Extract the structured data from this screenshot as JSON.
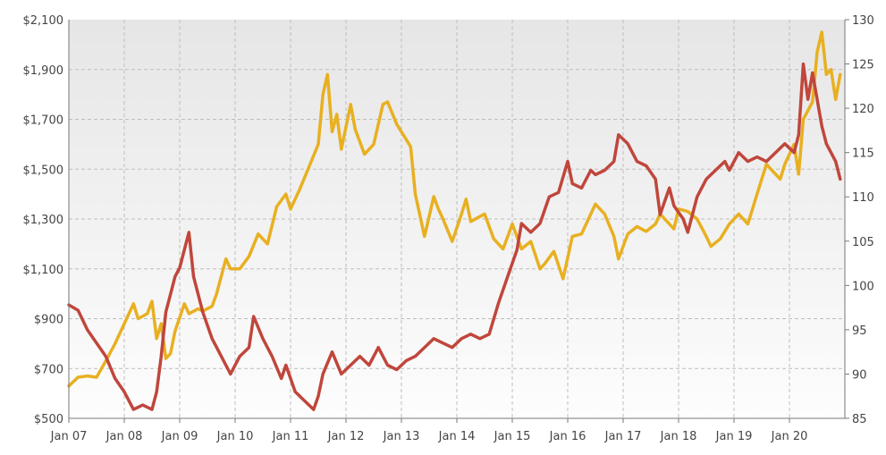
{
  "chart_data": {
    "type": "line",
    "title": "",
    "xlabel": "",
    "ylabel": "",
    "x_tick_labels": [
      "Jan 07",
      "Jan 08",
      "Jan 09",
      "Jan 10",
      "Jan 11",
      "Jan 12",
      "Jan 13",
      "Jan 14",
      "Jan 15",
      "Jan 16",
      "Jan 17",
      "Jan 18",
      "Jan 19",
      "Jan 20"
    ],
    "y_left_tick_labels": [
      "$2,100",
      "$1,900",
      "$1,700",
      "$1,500",
      "$1,300",
      "$1,100",
      "$900",
      "$700",
      "$500"
    ],
    "y_right_tick_labels": [
      "130",
      "125",
      "120",
      "115",
      "110",
      "105",
      "100",
      "95",
      "90",
      "85"
    ],
    "y_left_lim": [
      500,
      2100
    ],
    "y_right_lim": [
      85,
      130
    ],
    "x_range": [
      "2007-01",
      "2020-12"
    ],
    "grid": true,
    "legend": "none",
    "series": [
      {
        "axis": "left",
        "color": "#e8b021",
        "points": [
          [
            "2007-01",
            630
          ],
          [
            "2007-03",
            665
          ],
          [
            "2007-05",
            670
          ],
          [
            "2007-07",
            665
          ],
          [
            "2007-09",
            730
          ],
          [
            "2007-11",
            800
          ],
          [
            "2008-01",
            880
          ],
          [
            "2008-03",
            960
          ],
          [
            "2008-04",
            900
          ],
          [
            "2008-06",
            920
          ],
          [
            "2008-07",
            970
          ],
          [
            "2008-08",
            820
          ],
          [
            "2008-09",
            880
          ],
          [
            "2008-10",
            740
          ],
          [
            "2008-11",
            760
          ],
          [
            "2008-12",
            850
          ],
          [
            "2009-02",
            960
          ],
          [
            "2009-03",
            920
          ],
          [
            "2009-05",
            940
          ],
          [
            "2009-06",
            930
          ],
          [
            "2009-08",
            950
          ],
          [
            "2009-09",
            1000
          ],
          [
            "2009-11",
            1140
          ],
          [
            "2009-12",
            1100
          ],
          [
            "2010-02",
            1100
          ],
          [
            "2010-04",
            1150
          ],
          [
            "2010-06",
            1240
          ],
          [
            "2010-08",
            1200
          ],
          [
            "2010-10",
            1350
          ],
          [
            "2010-12",
            1400
          ],
          [
            "2011-01",
            1340
          ],
          [
            "2011-03",
            1420
          ],
          [
            "2011-05",
            1510
          ],
          [
            "2011-07",
            1600
          ],
          [
            "2011-08",
            1800
          ],
          [
            "2011-09",
            1880
          ],
          [
            "2011-10",
            1650
          ],
          [
            "2011-11",
            1720
          ],
          [
            "2011-12",
            1580
          ],
          [
            "2012-02",
            1760
          ],
          [
            "2012-03",
            1660
          ],
          [
            "2012-05",
            1560
          ],
          [
            "2012-07",
            1600
          ],
          [
            "2012-09",
            1760
          ],
          [
            "2012-10",
            1770
          ],
          [
            "2012-12",
            1680
          ],
          [
            "2013-02",
            1620
          ],
          [
            "2013-03",
            1590
          ],
          [
            "2013-04",
            1400
          ],
          [
            "2013-06",
            1230
          ],
          [
            "2013-08",
            1390
          ],
          [
            "2013-09",
            1340
          ],
          [
            "2013-10",
            1300
          ],
          [
            "2013-12",
            1210
          ],
          [
            "2014-02",
            1320
          ],
          [
            "2014-03",
            1380
          ],
          [
            "2014-04",
            1290
          ],
          [
            "2014-06",
            1310
          ],
          [
            "2014-07",
            1320
          ],
          [
            "2014-09",
            1220
          ],
          [
            "2014-11",
            1180
          ],
          [
            "2015-01",
            1280
          ],
          [
            "2015-03",
            1180
          ],
          [
            "2015-05",
            1210
          ],
          [
            "2015-07",
            1100
          ],
          [
            "2015-08",
            1120
          ],
          [
            "2015-10",
            1170
          ],
          [
            "2015-12",
            1060
          ],
          [
            "2016-02",
            1230
          ],
          [
            "2016-04",
            1240
          ],
          [
            "2016-06",
            1320
          ],
          [
            "2016-07",
            1360
          ],
          [
            "2016-09",
            1320
          ],
          [
            "2016-11",
            1230
          ],
          [
            "2016-12",
            1140
          ],
          [
            "2017-02",
            1240
          ],
          [
            "2017-04",
            1270
          ],
          [
            "2017-06",
            1250
          ],
          [
            "2017-08",
            1280
          ],
          [
            "2017-09",
            1320
          ],
          [
            "2017-11",
            1280
          ],
          [
            "2017-12",
            1260
          ],
          [
            "2018-01",
            1340
          ],
          [
            "2018-03",
            1330
          ],
          [
            "2018-05",
            1300
          ],
          [
            "2018-07",
            1230
          ],
          [
            "2018-08",
            1190
          ],
          [
            "2018-10",
            1220
          ],
          [
            "2018-12",
            1280
          ],
          [
            "2019-02",
            1320
          ],
          [
            "2019-04",
            1280
          ],
          [
            "2019-06",
            1400
          ],
          [
            "2019-08",
            1520
          ],
          [
            "2019-09",
            1500
          ],
          [
            "2019-11",
            1460
          ],
          [
            "2019-12",
            1520
          ],
          [
            "2020-02",
            1600
          ],
          [
            "2020-03",
            1480
          ],
          [
            "2020-04",
            1700
          ],
          [
            "2020-06",
            1770
          ],
          [
            "2020-07",
            1970
          ],
          [
            "2020-08",
            2050
          ],
          [
            "2020-09",
            1880
          ],
          [
            "2020-10",
            1900
          ],
          [
            "2020-11",
            1780
          ],
          [
            "2020-12",
            1880
          ]
        ]
      },
      {
        "axis": "right",
        "color": "#c0463c",
        "points": [
          [
            "2007-01",
            97.8
          ],
          [
            "2007-03",
            97.2
          ],
          [
            "2007-05",
            95
          ],
          [
            "2007-07",
            93.5
          ],
          [
            "2007-09",
            92
          ],
          [
            "2007-11",
            89.5
          ],
          [
            "2008-01",
            88
          ],
          [
            "2008-03",
            86
          ],
          [
            "2008-05",
            86.5
          ],
          [
            "2008-07",
            86
          ],
          [
            "2008-08",
            88
          ],
          [
            "2008-09",
            92
          ],
          [
            "2008-10",
            97
          ],
          [
            "2008-11",
            99
          ],
          [
            "2008-12",
            101
          ],
          [
            "2009-01",
            102
          ],
          [
            "2009-03",
            106
          ],
          [
            "2009-04",
            101
          ],
          [
            "2009-06",
            97
          ],
          [
            "2009-08",
            94
          ],
          [
            "2009-10",
            92
          ],
          [
            "2009-12",
            90
          ],
          [
            "2010-02",
            92
          ],
          [
            "2010-04",
            93
          ],
          [
            "2010-05",
            96.5
          ],
          [
            "2010-07",
            94
          ],
          [
            "2010-09",
            92
          ],
          [
            "2010-11",
            89.5
          ],
          [
            "2010-12",
            91
          ],
          [
            "2011-02",
            88
          ],
          [
            "2011-04",
            87
          ],
          [
            "2011-06",
            86
          ],
          [
            "2011-07",
            87.5
          ],
          [
            "2011-08",
            90
          ],
          [
            "2011-10",
            92.5
          ],
          [
            "2011-12",
            90
          ],
          [
            "2012-02",
            91
          ],
          [
            "2012-04",
            92
          ],
          [
            "2012-06",
            91
          ],
          [
            "2012-08",
            93
          ],
          [
            "2012-10",
            91
          ],
          [
            "2012-12",
            90.5
          ],
          [
            "2013-02",
            91.5
          ],
          [
            "2013-04",
            92
          ],
          [
            "2013-06",
            93
          ],
          [
            "2013-08",
            94
          ],
          [
            "2013-10",
            93.5
          ],
          [
            "2013-12",
            93
          ],
          [
            "2014-02",
            94
          ],
          [
            "2014-04",
            94.5
          ],
          [
            "2014-06",
            94
          ],
          [
            "2014-08",
            94.5
          ],
          [
            "2014-10",
            98
          ],
          [
            "2014-12",
            101
          ],
          [
            "2015-02",
            104
          ],
          [
            "2015-03",
            107
          ],
          [
            "2015-05",
            106
          ],
          [
            "2015-07",
            107
          ],
          [
            "2015-09",
            110
          ],
          [
            "2015-11",
            110.5
          ],
          [
            "2016-01",
            114
          ],
          [
            "2016-02",
            111.5
          ],
          [
            "2016-04",
            111
          ],
          [
            "2016-06",
            113
          ],
          [
            "2016-07",
            112.5
          ],
          [
            "2016-09",
            113
          ],
          [
            "2016-11",
            114
          ],
          [
            "2016-12",
            117
          ],
          [
            "2017-02",
            116
          ],
          [
            "2017-04",
            114
          ],
          [
            "2017-06",
            113.5
          ],
          [
            "2017-08",
            112
          ],
          [
            "2017-09",
            108
          ],
          [
            "2017-11",
            111
          ],
          [
            "2017-12",
            109
          ],
          [
            "2018-02",
            107.5
          ],
          [
            "2018-03",
            106
          ],
          [
            "2018-05",
            110
          ],
          [
            "2018-07",
            112
          ],
          [
            "2018-09",
            113
          ],
          [
            "2018-11",
            114
          ],
          [
            "2018-12",
            113
          ],
          [
            "2019-02",
            115
          ],
          [
            "2019-04",
            114
          ],
          [
            "2019-06",
            114.5
          ],
          [
            "2019-08",
            114
          ],
          [
            "2019-10",
            115
          ],
          [
            "2019-12",
            116
          ],
          [
            "2020-02",
            115
          ],
          [
            "2020-03",
            117
          ],
          [
            "2020-04",
            125
          ],
          [
            "2020-05",
            121
          ],
          [
            "2020-06",
            124
          ],
          [
            "2020-08",
            118
          ],
          [
            "2020-09",
            116
          ],
          [
            "2020-10",
            115
          ],
          [
            "2020-11",
            114
          ],
          [
            "2020-12",
            112
          ]
        ]
      }
    ]
  }
}
